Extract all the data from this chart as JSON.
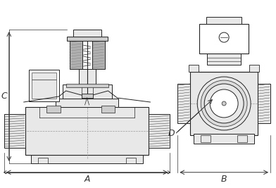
{
  "bg_color": "#ffffff",
  "line_color": "#222222",
  "dim_color": "#333333",
  "dashed_color": "#999999",
  "fill_white": "#ffffff",
  "fill_light": "#e8e8e8",
  "fill_mid": "#cccccc",
  "fill_dark": "#aaaaaa",
  "fill_hatch": "#999999",
  "label_A": "A",
  "label_B": "B",
  "label_C": "C",
  "label_D": "D",
  "font_size": 8
}
